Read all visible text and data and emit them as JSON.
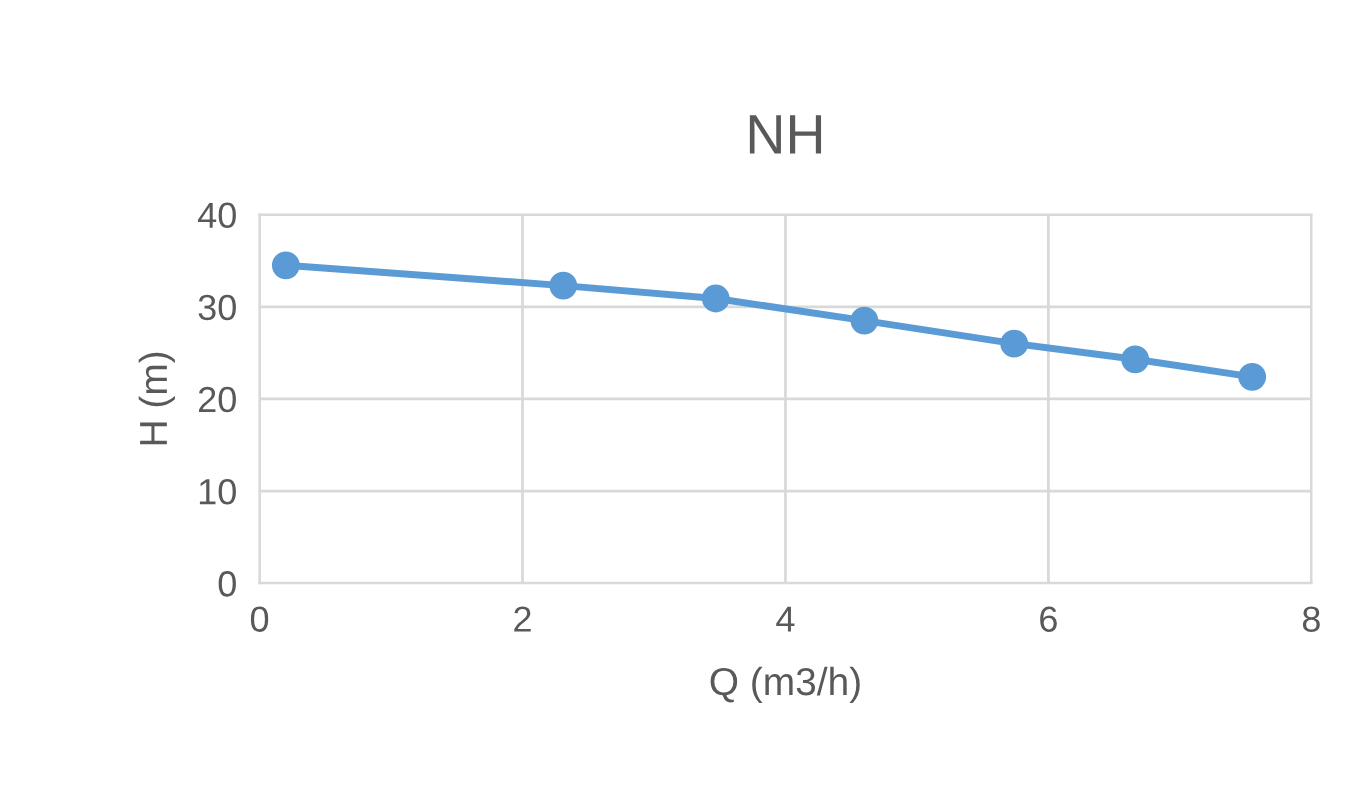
{
  "chart_data": {
    "type": "line",
    "title": "NH",
    "xlabel": "Q (m3/h)",
    "ylabel": "H (m)",
    "x": [
      0.2,
      2.31,
      3.47,
      4.6,
      5.74,
      6.66,
      7.55
    ],
    "series": [
      {
        "color": "#5b9bd5",
        "values": [
          34.5,
          32.3,
          30.9,
          28.5,
          26.0,
          24.3,
          22.4
        ]
      }
    ],
    "xlim": [
      0,
      8
    ],
    "xticks": [
      0,
      2,
      4,
      6,
      8
    ],
    "ylim": [
      0,
      40
    ],
    "yticks": [
      0,
      10,
      20,
      30,
      40
    ],
    "grid": true,
    "marker": "circle",
    "line_style": "solid",
    "legend": false
  }
}
